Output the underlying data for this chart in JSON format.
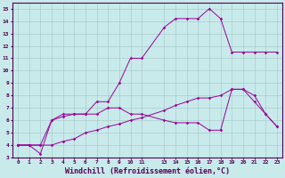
{
  "background_color": "#c8eaea",
  "line_color": "#990099",
  "grid_color": "#aacccc",
  "xlabel": "Windchill (Refroidissement éolien,°C)",
  "ylim": [
    3,
    15.5
  ],
  "xlim": [
    -0.5,
    23.5
  ],
  "line1_x": [
    0,
    1,
    2,
    3,
    4,
    5,
    6,
    7,
    8,
    9,
    10,
    11,
    13,
    14,
    15,
    16,
    17,
    18,
    19,
    20,
    21,
    22,
    23
  ],
  "line1_y": [
    4,
    4,
    4,
    6,
    6.5,
    6.5,
    6.5,
    7.5,
    7.5,
    9,
    11,
    11,
    13.5,
    14.2,
    14.2,
    14.2,
    15,
    14.2,
    11.5,
    11.5,
    11.5,
    11.5,
    11.5
  ],
  "line2_x": [
    0,
    1,
    2,
    3,
    4,
    5,
    6,
    7,
    8,
    9,
    10,
    11,
    13,
    14,
    15,
    16,
    17,
    18,
    19,
    20,
    21,
    22,
    23
  ],
  "line2_y": [
    4,
    4,
    3.3,
    6,
    6.3,
    6.5,
    6.5,
    6.5,
    7,
    7,
    6.5,
    6.5,
    6,
    5.8,
    5.8,
    5.8,
    5.2,
    5.2,
    8.5,
    8.5,
    7.5,
    6.5,
    5.5
  ],
  "line3_x": [
    0,
    1,
    2,
    3,
    4,
    5,
    6,
    7,
    8,
    9,
    10,
    11,
    13,
    14,
    15,
    16,
    17,
    18,
    19,
    20,
    21,
    22,
    23
  ],
  "line3_y": [
    4,
    4,
    4,
    4,
    4.3,
    4.5,
    5,
    5.2,
    5.5,
    5.7,
    6.0,
    6.2,
    6.8,
    7.2,
    7.5,
    7.8,
    7.8,
    8.0,
    8.5,
    8.5,
    8.0,
    6.5,
    5.5
  ],
  "x_ticks": [
    0,
    1,
    2,
    3,
    4,
    5,
    6,
    7,
    8,
    9,
    10,
    11,
    13,
    14,
    15,
    16,
    17,
    18,
    19,
    20,
    21,
    22,
    23
  ],
  "y_ticks": [
    3,
    4,
    5,
    6,
    7,
    8,
    9,
    10,
    11,
    12,
    13,
    14,
    15
  ]
}
